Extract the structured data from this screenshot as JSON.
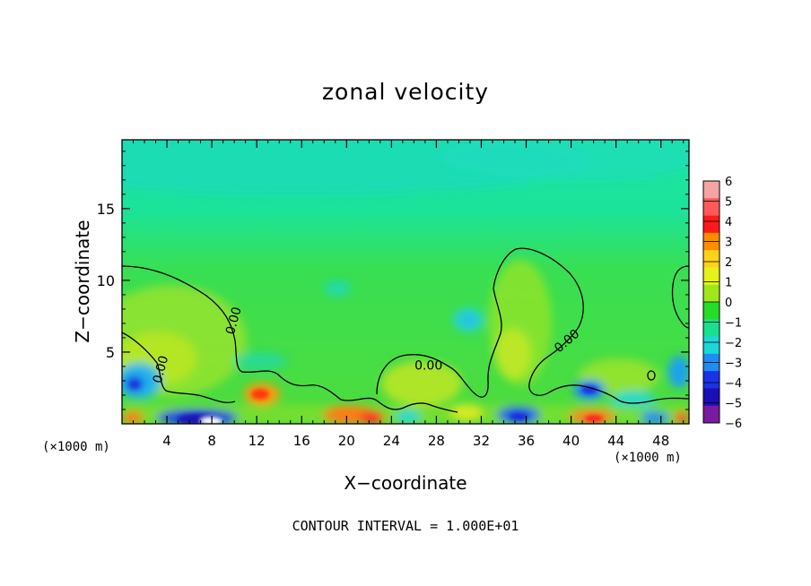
{
  "chart_data": {
    "type": "heatmap",
    "title": "zonal velocity",
    "xlabel": "X−coordinate",
    "ylabel": "Z−coordinate",
    "x_unit": "(×1000 m)",
    "x_ticks": [
      4,
      8,
      12,
      16,
      20,
      24,
      28,
      32,
      36,
      40,
      44,
      48
    ],
    "y_ticks": [
      5,
      10,
      15
    ],
    "xlim": [
      0,
      50.5
    ],
    "ylim": [
      0,
      19.8
    ],
    "footnote": "CONTOUR INTERVAL = 1.000E+01",
    "contour_label": "0.00",
    "contour_labels": [
      {
        "x": 9.9,
        "z": 7.2
      },
      {
        "x": 3.4,
        "z": 3.8
      },
      {
        "x": 27.3,
        "z": 4.1
      },
      {
        "x": 39.6,
        "z": 5.8
      }
    ],
    "colorbar": {
      "labels": [
        "6",
        "5",
        "4",
        "3",
        "2",
        "1",
        "0",
        "−1",
        "−2",
        "−3",
        "−4",
        "−5",
        "−6"
      ],
      "colors": [
        "#f7a3a3",
        "#ff5a5a",
        "#ff1a1a",
        "#ff8c00",
        "#ffd21a",
        "#e6f21a",
        "#9ee81a",
        "#26dc26",
        "#19e08c",
        "#1ad8d8",
        "#1f8cf2",
        "#1a33e6",
        "#1a0fb4",
        "#7a1aa0"
      ]
    },
    "field_regions": [
      {
        "x": 14,
        "z": 19,
        "value": -1.5,
        "rx": 30,
        "rz": 3
      },
      {
        "x": 40,
        "z": 18,
        "value": -1.2,
        "rx": 14,
        "rz": 2.5
      },
      {
        "x": 5,
        "z": 6,
        "value": 0.6,
        "rx": 5,
        "rz": 4
      },
      {
        "x": 35,
        "z": 6,
        "value": 1.2,
        "rx": 3,
        "rz": 4
      },
      {
        "x": 30,
        "z": 7,
        "value": -1.8,
        "rx": 1.5,
        "rz": 1
      },
      {
        "x": 12.3,
        "z": 2.1,
        "value": 4.2,
        "rx": 1.3,
        "rz": 0.8
      },
      {
        "x": 1.5,
        "z": 3.3,
        "value": -3.2,
        "rx": 1.5,
        "rz": 1
      },
      {
        "x": 40.8,
        "z": 2.6,
        "value": -3.6,
        "rx": 1.5,
        "rz": 0.7
      },
      {
        "x": 49.2,
        "z": 3.4,
        "value": -2.8,
        "rx": 1,
        "rz": 1.2
      },
      {
        "x": 8,
        "z": 0.3,
        "value": -5.2,
        "rx": 3,
        "rz": 0.4
      },
      {
        "x": 20,
        "z": 0.6,
        "value": 4.5,
        "rx": 2,
        "rz": 0.5
      },
      {
        "x": 42.5,
        "z": 0.5,
        "value": 4.8,
        "rx": 1.5,
        "rz": 0.5
      },
      {
        "x": 34,
        "z": 0.7,
        "value": -4.2,
        "rx": 1.5,
        "rz": 0.5
      },
      {
        "x": 28,
        "z": 1.8,
        "value": 2.2,
        "rx": 2,
        "rz": 1
      }
    ]
  }
}
